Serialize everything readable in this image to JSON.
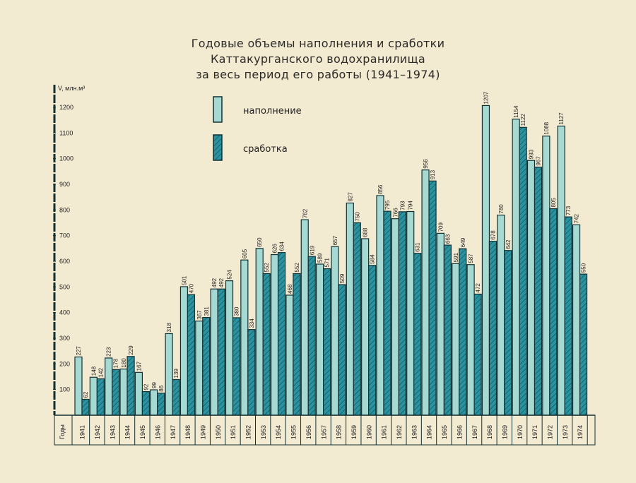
{
  "title_lines": [
    "Годовые объемы наполнения и сработки",
    "Каттакурганского водохранилища",
    "за весь период его работы (1941–1974)"
  ],
  "colors": {
    "fill": "#a7d9d3",
    "drain": "#2b93a0",
    "stroke": "#123033",
    "paper": "#f3ead2"
  },
  "chart_data": {
    "type": "bar",
    "title": "Годовые объемы наполнения и сработки Каттакурганского водохранилища за весь период его работы (1941–1974)",
    "ylabel": "V, млн.м³",
    "xlabel": "Годы",
    "ylim": [
      0,
      1200
    ],
    "yticks": [
      100,
      200,
      300,
      400,
      500,
      600,
      700,
      800,
      900,
      1000,
      1100,
      1200
    ],
    "categories": [
      "1941",
      "1942",
      "1943",
      "1944",
      "1945",
      "1946",
      "1947",
      "1948",
      "1949",
      "1950",
      "1951",
      "1952",
      "1953",
      "1954",
      "1955",
      "1956",
      "1957",
      "1958",
      "1959",
      "1960",
      "1961",
      "1962",
      "1963",
      "1964",
      "1965",
      "1966",
      "1967",
      "1968",
      "1969",
      "1970",
      "1971",
      "1972",
      "1973",
      "1974"
    ],
    "series": [
      {
        "name": "наполнение",
        "values": [
          227,
          148,
          223,
          180,
          167,
          99,
          318,
          501,
          367,
          492,
          524,
          605,
          650,
          626,
          468,
          762,
          589,
          657,
          827,
          688,
          856,
          766,
          794,
          956,
          709,
          591,
          587,
          1207,
          780,
          1154,
          993,
          1088,
          1127,
          742
        ]
      },
      {
        "name": "сработка",
        "values": [
          62,
          142,
          178,
          229,
          92,
          86,
          139,
          470,
          381,
          492,
          380,
          334,
          552,
          634,
          552,
          619,
          571,
          509,
          750,
          584,
          795,
          793,
          631,
          913,
          663,
          649,
          472,
          678,
          642,
          1122,
          967,
          805,
          773,
          550
        ]
      }
    ],
    "grid": false,
    "legend_position": "top-center"
  }
}
